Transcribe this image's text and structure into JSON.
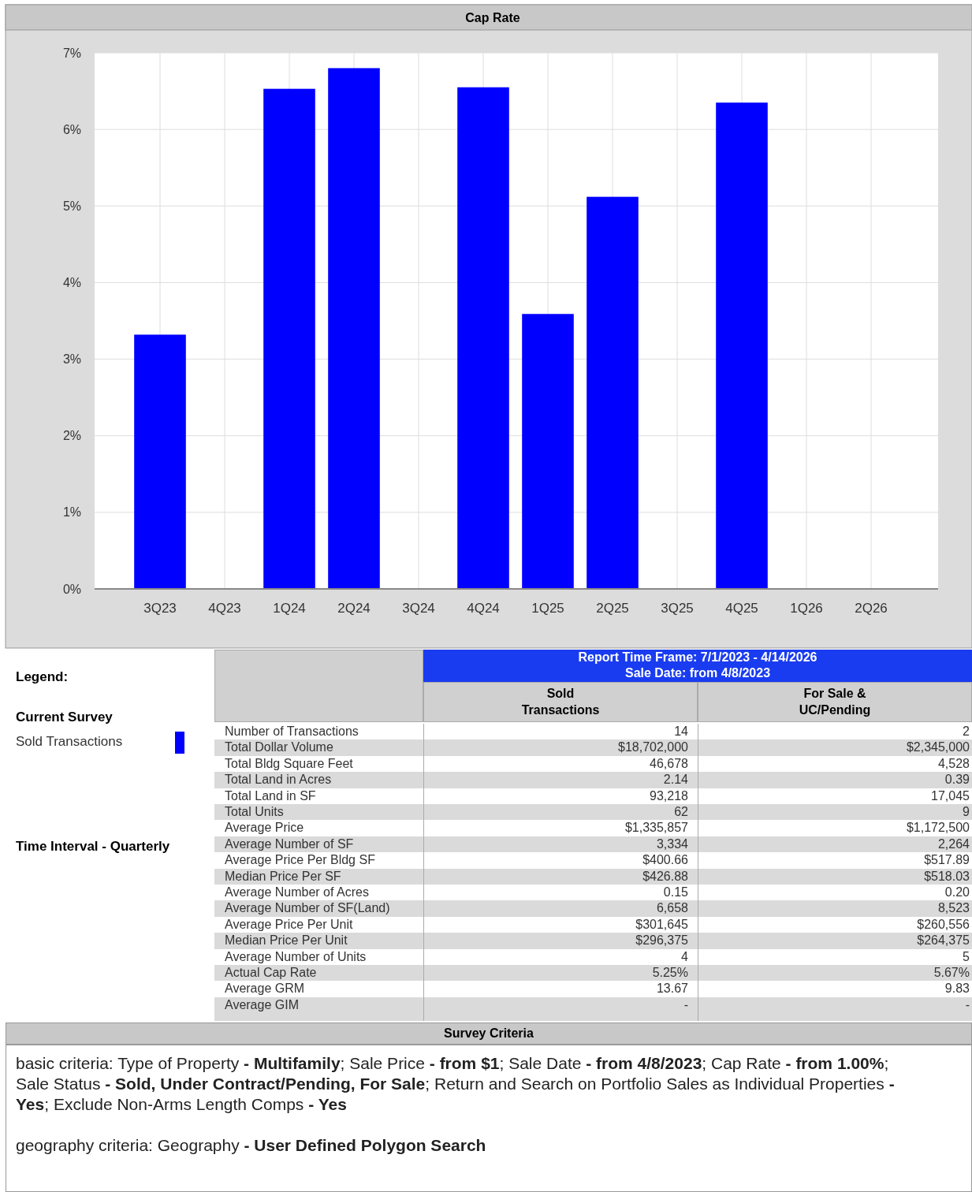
{
  "chart_data": [
    {
      "type": "bar",
      "title": "Cap Rate",
      "categories": [
        "3Q23",
        "4Q23",
        "1Q24",
        "2Q24",
        "3Q24",
        "4Q24",
        "1Q25",
        "2Q25",
        "3Q25",
        "4Q25",
        "1Q26",
        "2Q26"
      ],
      "series": [
        {
          "name": "Sold Transactions",
          "color": "#0000ff",
          "values": [
            3.32,
            null,
            6.53,
            6.8,
            null,
            6.55,
            3.59,
            5.12,
            null,
            6.35,
            null,
            null
          ]
        }
      ],
      "ylim": [
        0,
        7
      ],
      "yticks": [
        {
          "value": 0,
          "label": "0%"
        },
        {
          "value": 1,
          "label": "1%"
        },
        {
          "value": 2,
          "label": "2%"
        },
        {
          "value": 3,
          "label": "3%"
        },
        {
          "value": 4,
          "label": "4%"
        },
        {
          "value": 5,
          "label": "5%"
        },
        {
          "value": 6,
          "label": "6%"
        },
        {
          "value": 7,
          "label": "7%"
        }
      ],
      "grid": true,
      "legend": "bottom left",
      "legend_title": "Current Survey",
      "annotations": [
        "Legend:",
        "Time Interval - Quarterly"
      ]
    },
    {
      "type": "other",
      "title": "Report Time Frame:  7/1/2023 - 4/14/2026",
      "subtitle": "Sale Date: from 4/8/2023",
      "categories": [
        "Sold Transactions",
        "For Sale & UC/Pending"
      ],
      "y_categories": [
        "Number of Transactions",
        "Total Dollar Volume",
        "Total Bldg Square Feet",
        "Total Land in Acres",
        "Total Land in SF",
        "Total Units",
        "Average Price",
        "Average Number of SF",
        "Average Price Per Bldg SF",
        "Median Price Per SF",
        "Average Number of Acres",
        "Average Number of SF(Land)",
        "Average Price Per Unit",
        "Median Price Per Unit",
        "Average Number of Units",
        "Actual Cap Rate",
        "Average GRM",
        "Average GIM"
      ],
      "cell_labels": [
        [
          "14",
          "2"
        ],
        [
          "$18,702,000",
          "$2,345,000"
        ],
        [
          "46,678",
          "4,528"
        ],
        [
          "2.14",
          "0.39"
        ],
        [
          "93,218",
          "17,045"
        ],
        [
          "62",
          "9"
        ],
        [
          "$1,335,857",
          "$1,172,500"
        ],
        [
          "3,334",
          "2,264"
        ],
        [
          "$400.66",
          "$517.89"
        ],
        [
          "$426.88",
          "$518.03"
        ],
        [
          "0.15",
          "0.20"
        ],
        [
          "6,658",
          "8,523"
        ],
        [
          "$301,645",
          "$260,556"
        ],
        [
          "$296,375",
          "$264,375"
        ],
        [
          "4",
          "5"
        ],
        [
          "5.25%",
          "5.67%"
        ],
        [
          "13.67",
          "9.83"
        ],
        [
          "-",
          "-"
        ]
      ],
      "annotations": [
        "Survey Criteria",
        "basic criteria:  Type of Property - Multifamily; Sale Price - from $1; Sale Date - from 4/8/2023; Cap Rate - from 1.00%; Sale Status - Sold, Under Contract/Pending, For Sale; Return and Search on Portfolio Sales as Individual Properties - Yes; Exclude Non-Arms Length Comps - Yes",
        "geography criteria:  Geography - User Defined Polygon Search"
      ]
    }
  ]
}
